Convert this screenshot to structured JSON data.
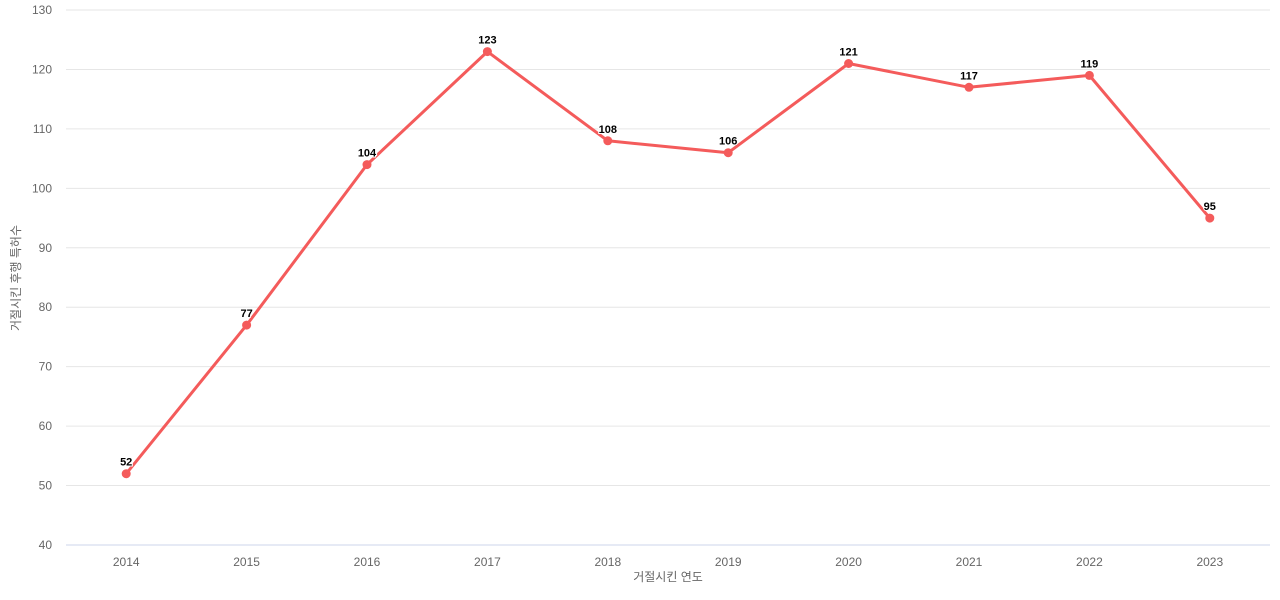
{
  "chart_data": {
    "type": "line",
    "categories": [
      "2014",
      "2015",
      "2016",
      "2017",
      "2018",
      "2019",
      "2020",
      "2021",
      "2022",
      "2023"
    ],
    "values": [
      52,
      77,
      104,
      123,
      108,
      106,
      121,
      117,
      119,
      95
    ],
    "title": "",
    "xlabel": "거절시킨 연도",
    "ylabel": "거절시킨 후행 특허수",
    "ylim": [
      40,
      130
    ],
    "ytick_step": 10,
    "yticks": [
      "40",
      "50",
      "60",
      "70",
      "80",
      "90",
      "100",
      "110",
      "120",
      "130"
    ],
    "grid": true,
    "legend": "none",
    "colors": {
      "line": "#f45b5b",
      "marker": "#f45b5b",
      "grid_line": "#e6e6e6",
      "axis_line": "#ccd6eb",
      "tick_label": "#666666",
      "axis_title": "#666666",
      "data_label": "#000000",
      "background": "#ffffff"
    }
  }
}
